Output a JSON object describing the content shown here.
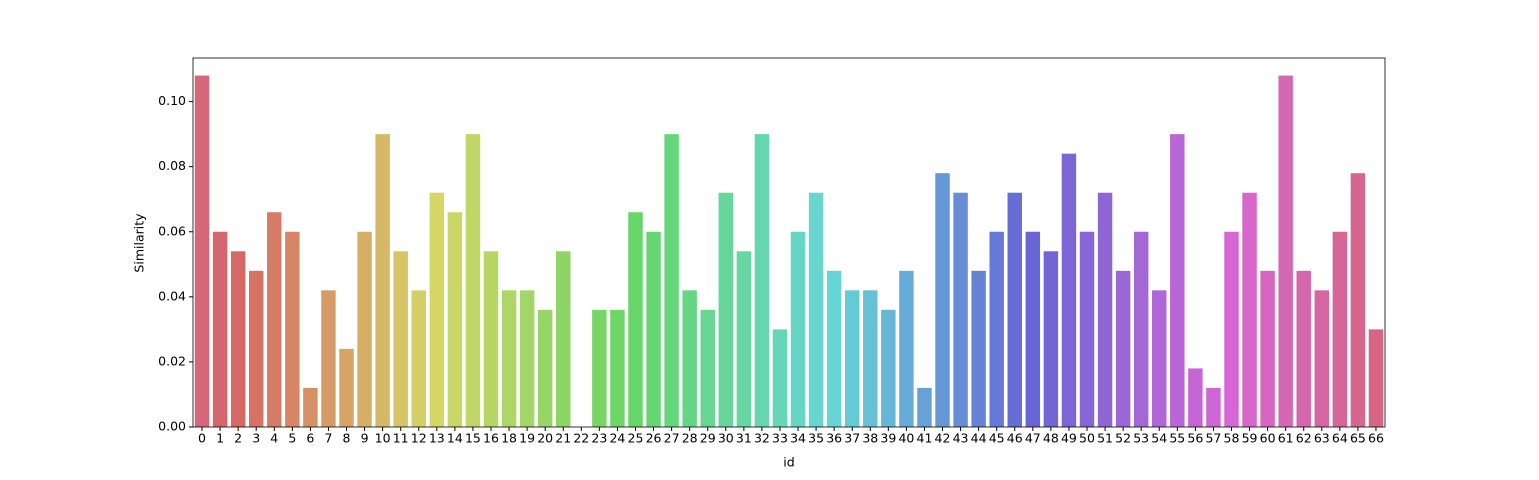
{
  "chart_data": {
    "type": "bar",
    "x_label": "id",
    "y_label": "Similarity",
    "categories": [
      "0",
      "1",
      "2",
      "3",
      "4",
      "5",
      "6",
      "7",
      "8",
      "9",
      "10",
      "11",
      "12",
      "13",
      "14",
      "15",
      "16",
      "18",
      "19",
      "20",
      "21",
      "22",
      "23",
      "24",
      "25",
      "26",
      "27",
      "28",
      "29",
      "30",
      "31",
      "32",
      "33",
      "34",
      "35",
      "36",
      "37",
      "38",
      "39",
      "40",
      "41",
      "42",
      "43",
      "44",
      "45",
      "46",
      "47",
      "48",
      "49",
      "50",
      "51",
      "52",
      "53",
      "54",
      "55",
      "56",
      "57",
      "58",
      "59",
      "60",
      "61",
      "62",
      "63",
      "64",
      "65",
      "66"
    ],
    "values": [
      0.108,
      0.06,
      0.054,
      0.048,
      0.066,
      0.06,
      0.012,
      0.042,
      0.024,
      0.06,
      0.09,
      0.054,
      0.042,
      0.072,
      0.066,
      0.09,
      0.054,
      0.042,
      0.042,
      0.036,
      0.054,
      0,
      0.036,
      0.036,
      0.066,
      0.06,
      0.09,
      0.042,
      0.036,
      0.072,
      0.054,
      0.09,
      0.03,
      0.06,
      0.072,
      0.048,
      0.042,
      0.042,
      0.036,
      0.048,
      0.012,
      0.078,
      0.072,
      0.048,
      0.06,
      0.072,
      0.06,
      0.054,
      0.084,
      0.06,
      0.072,
      0.048,
      0.06,
      0.042,
      0.09,
      0.018,
      0.012,
      0.06,
      0.072,
      0.048,
      0.108,
      0.048,
      0.042,
      0.06,
      0.078,
      0.03
    ],
    "palette": "husl",
    "ylim": [
      0,
      0.1134
    ],
    "yticks": [
      {
        "value": 0,
        "label": "0.00"
      },
      {
        "value": 0.02,
        "label": "0.02"
      },
      {
        "value": 0.04,
        "label": "0.04"
      },
      {
        "value": 0.06,
        "label": "0.06"
      },
      {
        "value": 0.08,
        "label": "0.08"
      },
      {
        "value": 0.1,
        "label": "0.10"
      }
    ],
    "grid": false
  }
}
